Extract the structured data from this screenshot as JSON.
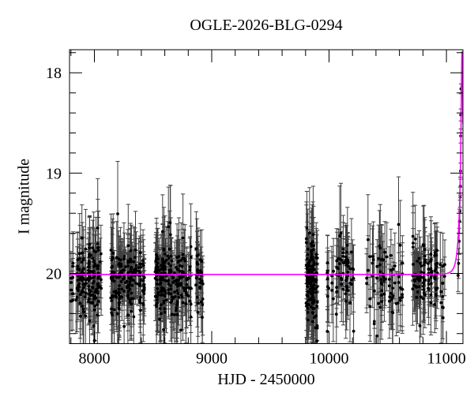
{
  "chart_data": {
    "type": "scatter",
    "title": "OGLE-2026-BLG-0294",
    "xlabel": "HJD - 2450000",
    "ylabel": "I magnitude",
    "x_axis": {
      "min": 7788,
      "max": 11141,
      "major_ticks": [
        8000,
        9000,
        10000,
        11000
      ],
      "minor_tick_step": 200
    },
    "y_axis": {
      "min": 17.77,
      "max": 20.7,
      "major_ticks": [
        18,
        19,
        20
      ],
      "minor_tick_step": 0.2,
      "inverted": true
    },
    "style": {
      "background": "#ffffff",
      "frame_color": "#000000",
      "point_color": "#000000",
      "error_bar_color": "#404040",
      "model_color": "#ff00ff"
    },
    "baseline_mag": 20.01,
    "seasons": [
      {
        "t_min": 7800,
        "t_max": 8058,
        "nights": 60,
        "max_per_night": 4,
        "mag_mean": 20.06,
        "mag_sigma": 0.13,
        "err_min": 0.14,
        "err_max": 0.3,
        "outlier_frac": 0.01
      },
      {
        "t_min": 8140,
        "t_max": 8432,
        "nights": 70,
        "max_per_night": 4,
        "mag_mean": 20.05,
        "mag_sigma": 0.13,
        "err_min": 0.14,
        "err_max": 0.3,
        "outlier_frac": 0.02
      },
      {
        "t_min": 8508,
        "t_max": 8828,
        "nights": 80,
        "max_per_night": 4,
        "mag_mean": 20.04,
        "mag_sigma": 0.15,
        "err_min": 0.15,
        "err_max": 0.32,
        "outlier_frac": 0.04
      },
      {
        "t_min": 8862,
        "t_max": 8932,
        "nights": 18,
        "max_per_night": 3,
        "mag_mean": 20.05,
        "mag_sigma": 0.14,
        "err_min": 0.15,
        "err_max": 0.3,
        "outlier_frac": 0.01
      },
      {
        "t_min": 9808,
        "t_max": 9902,
        "nights": 55,
        "max_per_night": 5,
        "mag_mean": 20.05,
        "mag_sigma": 0.18,
        "err_min": 0.15,
        "err_max": 0.33,
        "outlier_frac": 0.04
      },
      {
        "t_min": 9968,
        "t_max": 10228,
        "nights": 34,
        "max_per_night": 3,
        "mag_mean": 20.03,
        "mag_sigma": 0.16,
        "err_min": 0.16,
        "err_max": 0.34,
        "outlier_frac": 0.05
      },
      {
        "t_min": 10312,
        "t_max": 10632,
        "nights": 36,
        "max_per_night": 3,
        "mag_mean": 20.04,
        "mag_sigma": 0.16,
        "err_min": 0.16,
        "err_max": 0.34,
        "outlier_frac": 0.04
      },
      {
        "t_min": 10692,
        "t_max": 10988,
        "nights": 50,
        "max_per_night": 3,
        "mag_mean": 20.03,
        "mag_sigma": 0.15,
        "err_min": 0.15,
        "err_max": 0.32,
        "outlier_frac": 0.03
      }
    ],
    "event_points": [
      {
        "hjd": 11099,
        "mag": 20.02,
        "err": 0.16
      },
      {
        "hjd": 11104,
        "mag": 19.9,
        "err": 0.15
      },
      {
        "hjd": 11109,
        "mag": 19.68,
        "err": 0.13
      },
      {
        "hjd": 11112,
        "mag": 19.48,
        "err": 0.12
      },
      {
        "hjd": 11115,
        "mag": 19.38,
        "err": 0.11
      },
      {
        "hjd": 11117,
        "mag": 19.24,
        "err": 0.1
      },
      {
        "hjd": 11119,
        "mag": 19.13,
        "err": 0.09
      },
      {
        "hjd": 11120,
        "mag": 18.98,
        "err": 0.08
      },
      {
        "hjd": 11122,
        "mag": 18.63,
        "err": 0.07
      },
      {
        "hjd": 11123,
        "mag": 18.42,
        "err": 0.06
      },
      {
        "hjd": 11124,
        "mag": 18.16,
        "err": 0.05
      }
    ],
    "model": {
      "type": "paczynski_point_lens",
      "t0": 11133,
      "tE": 36,
      "u0": 0.13,
      "baseline_mag": 20.01
    }
  }
}
